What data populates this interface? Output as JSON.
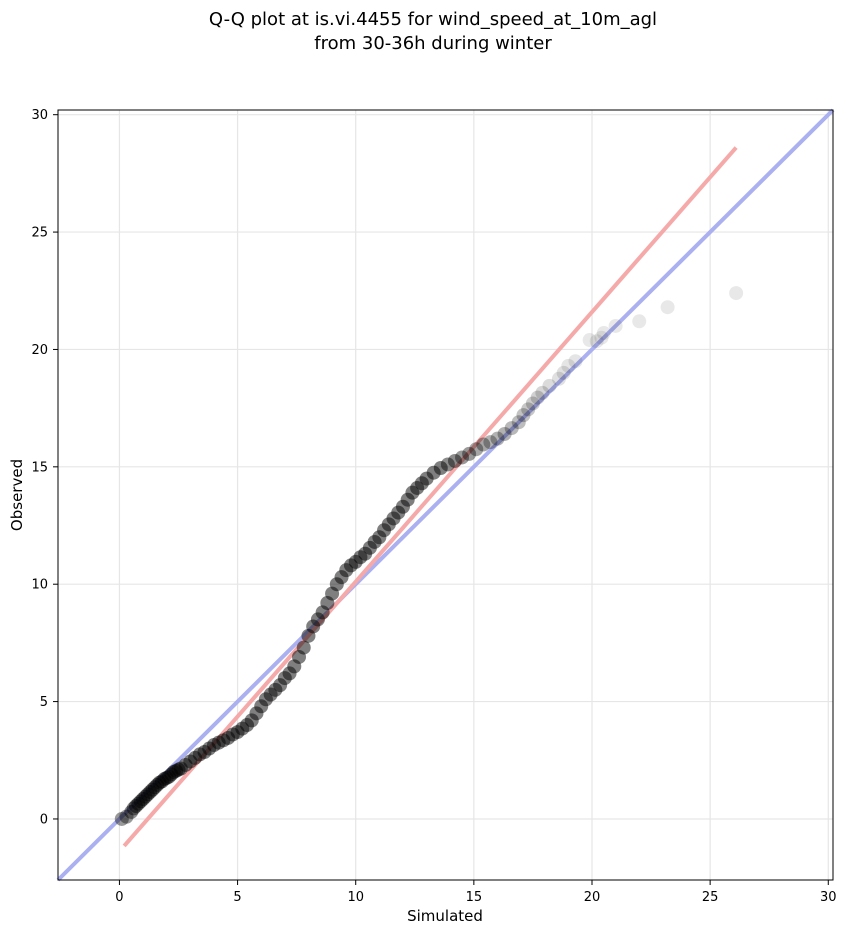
{
  "chart_data": {
    "type": "scatter",
    "title_lines": [
      "Q-Q plot at is.vi.4455 for wind_speed_at_10m_agl",
      "from 30-36h during winter"
    ],
    "xlabel": "Simulated",
    "ylabel": "Observed",
    "xlim": [
      -2.6,
      30.2
    ],
    "ylim": [
      -2.6,
      30.2
    ],
    "xticks": [
      0,
      5,
      10,
      15,
      20,
      25,
      30
    ],
    "yticks": [
      0,
      5,
      10,
      15,
      20,
      25,
      30
    ],
    "grid": true,
    "colors": {
      "points": "#000000",
      "identity_line": "#aab0f0",
      "fit_line": "#f5a9a9",
      "grid": "#e6e6e6"
    },
    "identity_line": {
      "from": [
        -2.6,
        -2.6
      ],
      "to": [
        30.2,
        30.2
      ]
    },
    "fit_line": {
      "from": [
        0.2,
        -1.15
      ],
      "to": [
        26.1,
        28.6
      ]
    },
    "x": [
      0.1,
      0.3,
      0.5,
      0.6,
      0.7,
      0.8,
      0.9,
      1.0,
      1.1,
      1.2,
      1.3,
      1.4,
      1.5,
      1.6,
      1.7,
      1.8,
      1.9,
      2.0,
      2.1,
      2.2,
      2.3,
      2.4,
      2.5,
      2.6,
      2.8,
      3.0,
      3.2,
      3.4,
      3.6,
      3.8,
      4.0,
      4.2,
      4.4,
      4.6,
      4.8,
      5.0,
      5.2,
      5.4,
      5.6,
      5.8,
      6.0,
      6.2,
      6.4,
      6.6,
      6.8,
      7.0,
      7.2,
      7.4,
      7.6,
      7.8,
      8.0,
      8.2,
      8.4,
      8.6,
      8.8,
      9.0,
      9.2,
      9.4,
      9.6,
      9.8,
      10.0,
      10.2,
      10.4,
      10.6,
      10.8,
      11.0,
      11.2,
      11.4,
      11.6,
      11.8,
      12.0,
      12.2,
      12.4,
      12.6,
      12.8,
      13.0,
      13.3,
      13.6,
      13.9,
      14.2,
      14.5,
      14.8,
      15.1,
      15.4,
      15.7,
      16.0,
      16.3,
      16.6,
      16.9,
      17.1,
      17.3,
      17.5,
      17.7,
      17.9,
      18.2,
      18.6,
      18.8,
      19.0,
      19.3,
      19.9,
      20.2,
      20.4,
      20.5,
      21.0,
      22.0,
      23.2,
      26.1
    ],
    "y": [
      0.0,
      0.1,
      0.3,
      0.45,
      0.55,
      0.65,
      0.75,
      0.85,
      0.95,
      1.05,
      1.15,
      1.25,
      1.35,
      1.45,
      1.55,
      1.6,
      1.7,
      1.75,
      1.8,
      1.9,
      2.0,
      2.05,
      2.1,
      2.15,
      2.3,
      2.45,
      2.6,
      2.75,
      2.85,
      3.0,
      3.15,
      3.25,
      3.35,
      3.45,
      3.6,
      3.7,
      3.85,
      4.0,
      4.2,
      4.5,
      4.8,
      5.1,
      5.3,
      5.5,
      5.7,
      6.0,
      6.2,
      6.5,
      6.9,
      7.3,
      7.8,
      8.2,
      8.5,
      8.8,
      9.2,
      9.6,
      10.0,
      10.3,
      10.6,
      10.8,
      10.95,
      11.15,
      11.3,
      11.55,
      11.8,
      12.0,
      12.3,
      12.55,
      12.8,
      13.05,
      13.3,
      13.6,
      13.9,
      14.1,
      14.3,
      14.5,
      14.75,
      14.95,
      15.1,
      15.25,
      15.4,
      15.55,
      15.75,
      15.95,
      16.05,
      16.2,
      16.4,
      16.65,
      16.9,
      17.2,
      17.45,
      17.7,
      17.95,
      18.15,
      18.45,
      18.75,
      19.0,
      19.3,
      19.5,
      20.4,
      20.35,
      20.5,
      20.7,
      21.0,
      21.2,
      21.8,
      22.4
    ],
    "alpha": [
      0.4,
      0.4,
      0.45,
      0.45,
      0.5,
      0.5,
      0.5,
      0.5,
      0.5,
      0.5,
      0.5,
      0.5,
      0.5,
      0.5,
      0.5,
      0.5,
      0.5,
      0.5,
      0.5,
      0.5,
      0.5,
      0.5,
      0.5,
      0.5,
      0.5,
      0.5,
      0.5,
      0.5,
      0.5,
      0.5,
      0.5,
      0.5,
      0.5,
      0.5,
      0.5,
      0.5,
      0.5,
      0.5,
      0.5,
      0.5,
      0.5,
      0.5,
      0.5,
      0.5,
      0.5,
      0.5,
      0.5,
      0.5,
      0.5,
      0.5,
      0.5,
      0.5,
      0.5,
      0.5,
      0.5,
      0.5,
      0.5,
      0.5,
      0.5,
      0.5,
      0.5,
      0.5,
      0.5,
      0.5,
      0.5,
      0.5,
      0.5,
      0.5,
      0.5,
      0.5,
      0.5,
      0.5,
      0.5,
      0.5,
      0.5,
      0.5,
      0.5,
      0.5,
      0.45,
      0.45,
      0.4,
      0.4,
      0.35,
      0.35,
      0.3,
      0.3,
      0.3,
      0.28,
      0.26,
      0.24,
      0.22,
      0.2,
      0.18,
      0.16,
      0.14,
      0.12,
      0.12,
      0.1,
      0.1,
      0.09,
      0.09,
      0.09,
      0.09,
      0.09,
      0.09,
      0.09,
      0.09
    ]
  }
}
